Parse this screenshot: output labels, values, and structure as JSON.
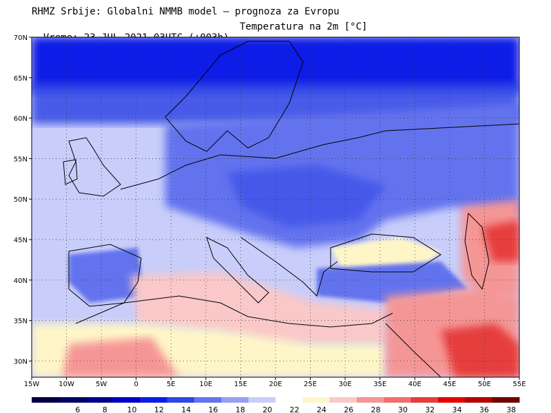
{
  "header": {
    "line1": "RHMZ Srbije: Globalni NMMB model — prognoza za Evropu",
    "line2_left": "Vreme: 23 JUL 2021 03UTC (+003h)",
    "line2_right": "Temperatura na 2m [°C]"
  },
  "axes": {
    "lat_labels": [
      "70N",
      "65N",
      "60N",
      "55N",
      "50N",
      "45N",
      "40N",
      "35N",
      "30N"
    ],
    "lon_labels": [
      "15W",
      "10W",
      "5W",
      "0",
      "5E",
      "10E",
      "15E",
      "20E",
      "25E",
      "30E",
      "35E",
      "40E",
      "45E",
      "50E",
      "55E"
    ],
    "lon_range": [
      -15,
      55
    ],
    "lat_range": [
      28,
      70
    ],
    "grid": "dotted"
  },
  "colorbar": {
    "labels": [
      "6",
      "8",
      "10",
      "12",
      "14",
      "16",
      "18",
      "20",
      "22",
      "24",
      "26",
      "28",
      "30",
      "32",
      "34",
      "36",
      "38"
    ],
    "colors": [
      "#000066",
      "#00008c",
      "#0000c8",
      "#0a1ee6",
      "#3246e6",
      "#6473ee",
      "#96a0f0",
      "#c8cdfa",
      "#ffffff",
      "#fff6c8",
      "#fac8c8",
      "#f59696",
      "#f06e6e",
      "#e63c3c",
      "#e60000",
      "#b40000",
      "#6e0000"
    ]
  },
  "colors": {
    "ocean_cold": "#c8cdfa",
    "land_cold": "#6473ee",
    "north_sea": "#3246e6",
    "arctic": "#0a1ee6",
    "mediterranean": "#fac8c8",
    "africa_hot": "#f59696",
    "hot_spot": "#e63c3c",
    "coast": "#000000"
  }
}
